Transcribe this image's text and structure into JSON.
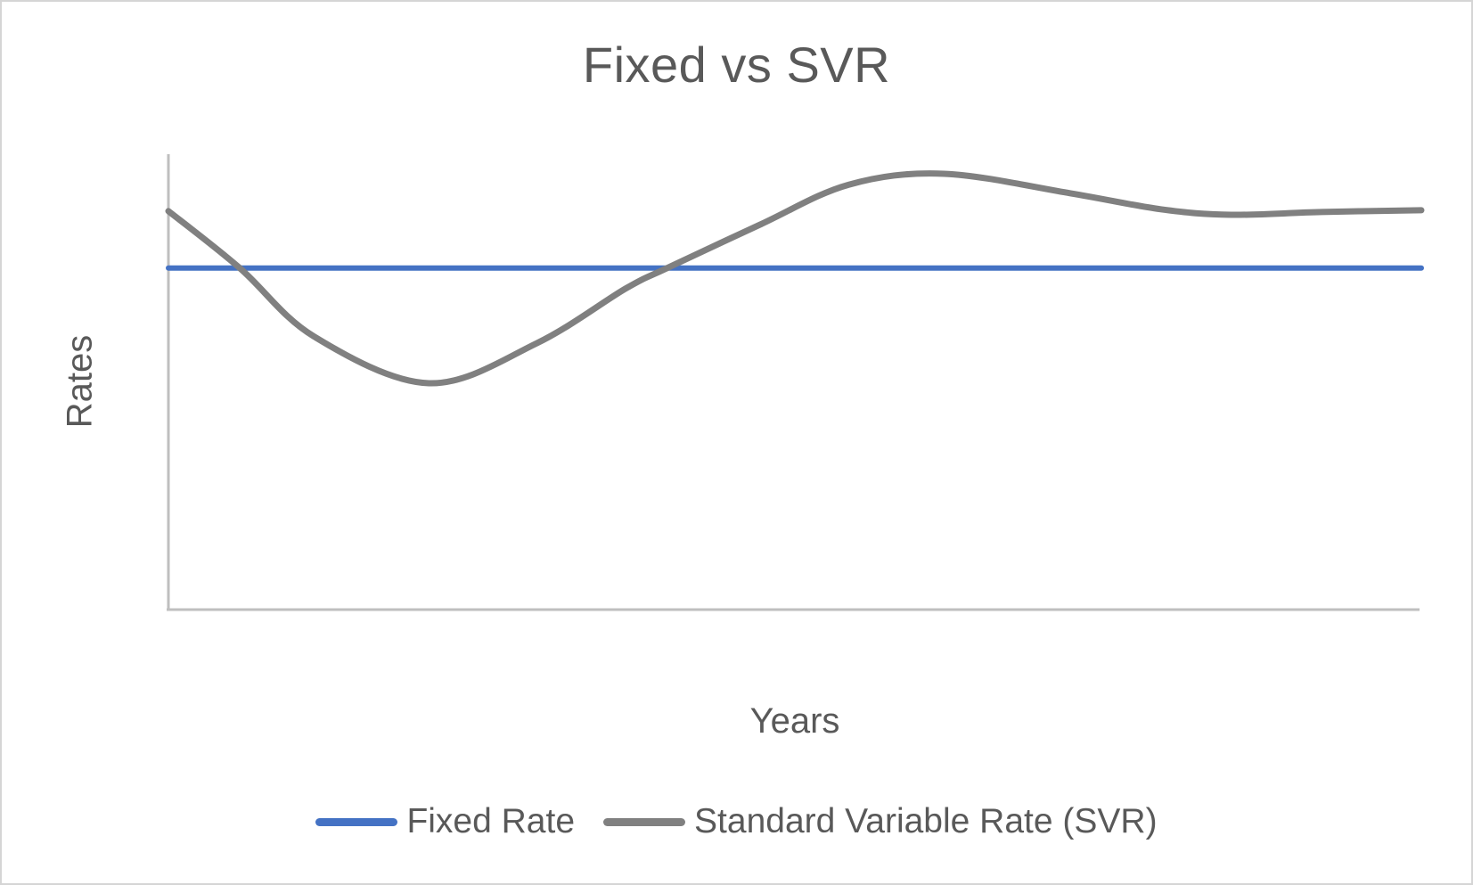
{
  "chart": {
    "title": "Fixed vs SVR",
    "x_axis_label": "Years",
    "y_axis_label": "Rates"
  },
  "legend": {
    "items": [
      {
        "label": "Fixed Rate",
        "color": "#4472C4"
      },
      {
        "label": "Standard Variable Rate (SVR)",
        "color": "#808080"
      }
    ]
  },
  "colors": {
    "fixed_rate_line": "#4472C4",
    "svr_line": "#808080",
    "axis_line": "#BFBFBF",
    "text": "#595959"
  },
  "chart_data": {
    "type": "line",
    "title": "Fixed vs SVR",
    "xlabel": "Years",
    "ylabel": "Rates",
    "grid": false,
    "axis_tick_labels_visible": false,
    "legend_position": "bottom",
    "note": "Axes carry no numeric tick labels in the source image; x is years on a 0-10 relative span and y values are relative rate levels (0-10 scale) estimated from line positions.",
    "xlim": [
      0,
      10
    ],
    "ylim": [
      0,
      10
    ],
    "series": [
      {
        "name": "Fixed Rate",
        "color": "#4472C4",
        "style": "straight",
        "stroke_width": 6,
        "x": [
          0,
          10
        ],
        "values": [
          7.5,
          7.5
        ]
      },
      {
        "name": "Standard Variable Rate (SVR)",
        "color": "#808080",
        "style": "smooth",
        "stroke_width": 7,
        "x": [
          0,
          0.57,
          1.16,
          2.08,
          2.94,
          3.65,
          3.98,
          4.72,
          5.43,
          6.19,
          7.2,
          7.92,
          8.48,
          9.2,
          10
        ],
        "values": [
          8.75,
          7.5,
          6.0,
          4.97,
          5.85,
          7.05,
          7.5,
          8.45,
          9.33,
          9.57,
          9.14,
          8.79,
          8.67,
          8.73,
          8.77
        ]
      }
    ]
  }
}
